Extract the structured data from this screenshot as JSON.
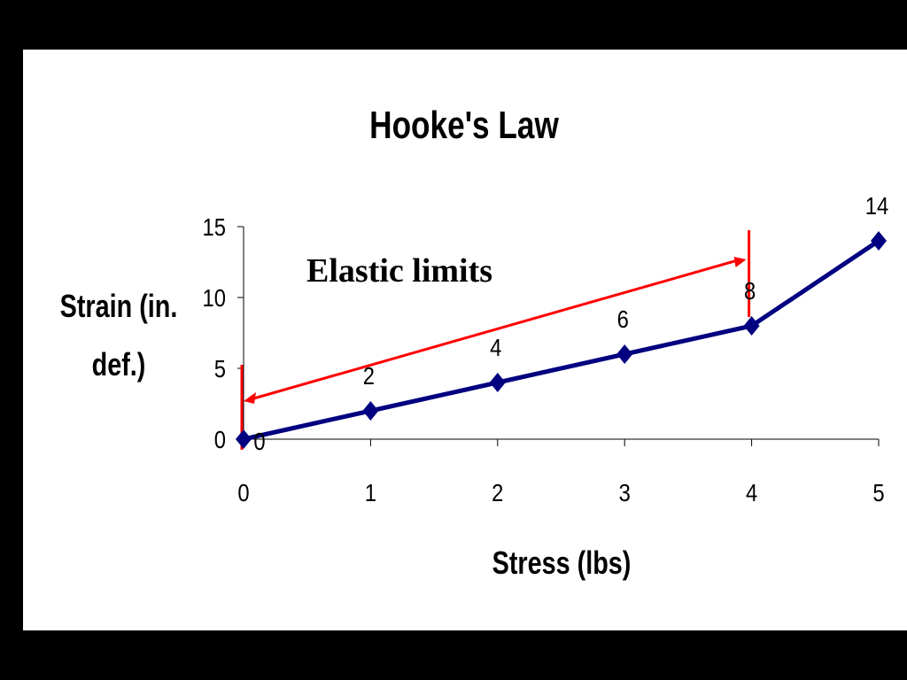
{
  "colors": {
    "background": "#000000",
    "plot_area": "#ffffff",
    "series_line": "#000080",
    "annotation": "#ff0000"
  },
  "chart_data": {
    "type": "line",
    "title": "Hooke's Law",
    "xlabel": "Stress (lbs)",
    "ylabel_lines": [
      "Strain (in.",
      "def.)"
    ],
    "x": [
      0,
      1,
      2,
      3,
      4,
      5
    ],
    "series": [
      {
        "values": [
          0,
          2,
          4,
          6,
          8,
          14
        ],
        "marker": "diamond"
      }
    ],
    "data_labels": [
      "0",
      "2",
      "4",
      "6",
      "8",
      "14"
    ],
    "xlim": [
      0,
      5
    ],
    "ylim": [
      0,
      15
    ],
    "x_ticks": [
      "0",
      "1",
      "2",
      "3",
      "4",
      "5"
    ],
    "y_ticks": [
      "0",
      "5",
      "10",
      "15"
    ],
    "grid": false,
    "annotation": {
      "text": "Elastic limits",
      "x_range": [
        0,
        4
      ],
      "style": "double-headed arrow"
    }
  }
}
